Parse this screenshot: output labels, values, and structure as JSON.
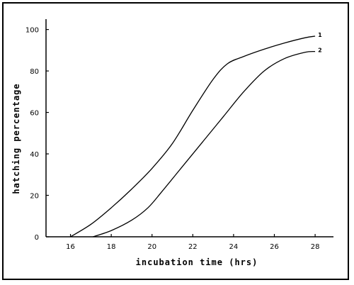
{
  "chart_data": {
    "type": "line",
    "title": "",
    "xlabel": "incubation time (hrs)",
    "ylabel": "hatching percentage",
    "xlim": [
      14.8,
      28.9
    ],
    "ylim": [
      0,
      105
    ],
    "x_ticks": [
      16,
      18,
      20,
      22,
      24,
      26,
      28
    ],
    "y_ticks": [
      0,
      20,
      40,
      60,
      80,
      100
    ],
    "grid": false,
    "legend": "none",
    "series": [
      {
        "name": "1",
        "points": [
          [
            16.0,
            0
          ],
          [
            17.0,
            6
          ],
          [
            18.0,
            14
          ],
          [
            19.0,
            23
          ],
          [
            20.0,
            33
          ],
          [
            21.0,
            45
          ],
          [
            22.0,
            61
          ],
          [
            23.0,
            76
          ],
          [
            23.7,
            83.5
          ],
          [
            24.5,
            87
          ],
          [
            25.5,
            90.5
          ],
          [
            26.5,
            93.5
          ],
          [
            27.5,
            96
          ],
          [
            28.0,
            96.8
          ]
        ]
      },
      {
        "name": "2",
        "points": [
          [
            17.1,
            0
          ],
          [
            18.0,
            3
          ],
          [
            19.0,
            8
          ],
          [
            19.8,
            14
          ],
          [
            20.5,
            22
          ],
          [
            21.5,
            34
          ],
          [
            22.5,
            46
          ],
          [
            23.5,
            58
          ],
          [
            24.5,
            70
          ],
          [
            25.5,
            80
          ],
          [
            26.5,
            86
          ],
          [
            27.5,
            89
          ],
          [
            28.0,
            89.4
          ]
        ]
      }
    ]
  },
  "colors": {
    "line": "#000000",
    "background": "#ffffff"
  }
}
